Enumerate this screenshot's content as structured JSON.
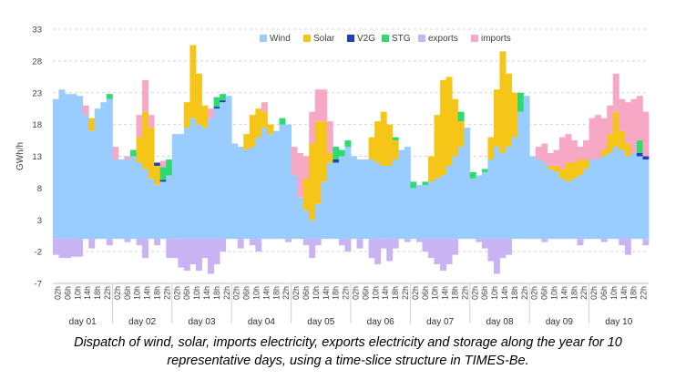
{
  "chart_data": {
    "type": "area",
    "ylabel": "GWh/h",
    "ylim": [
      -7,
      33
    ],
    "yticks": [
      33,
      28,
      23,
      18,
      13,
      8,
      3,
      -2,
      -7
    ],
    "grid": "dashed horizontal",
    "legend_placement": "top-right",
    "series": [
      {
        "name": "Wind",
        "color": "#99CCFF"
      },
      {
        "name": "Solar",
        "color": "#F5C518"
      },
      {
        "name": "V2G",
        "color": "#1F3FBF"
      },
      {
        "name": "STG",
        "color": "#2EDB6E"
      },
      {
        "name": "exports",
        "color": "#C9B3F2"
      },
      {
        "name": "imports",
        "color": "#F7A8C4"
      }
    ],
    "hour_labels": [
      "02h",
      "06h",
      "10h",
      "14h",
      "18h",
      "22h"
    ],
    "days": [
      {
        "label": "day 01",
        "wind": [
          22.0,
          23.5,
          22.8,
          22.8,
          22.5,
          19.5,
          17.0,
          20.5,
          21.5,
          22.0
        ],
        "solar": [
          0,
          0,
          0,
          0,
          0,
          0,
          2.0,
          0,
          0,
          0
        ],
        "v2g": [
          0,
          0,
          0,
          0,
          0,
          0,
          0,
          0,
          0,
          0
        ],
        "stg": [
          0,
          0,
          0,
          0,
          0,
          0,
          0,
          0,
          0,
          0.8
        ],
        "imports": [
          0,
          0,
          0,
          0,
          0,
          1.5,
          0,
          0,
          0,
          0
        ],
        "exports": [
          -2.5,
          -3.0,
          -3.0,
          -2.8,
          -2.8,
          0,
          -1.5,
          0,
          0,
          -1.0
        ]
      },
      {
        "label": "day 02",
        "wind": [
          12.5,
          12.5,
          12.5,
          13.0,
          12.0,
          11.0,
          9.5,
          8.5,
          9.0,
          10.0
        ],
        "solar": [
          0,
          0,
          0,
          0,
          4.0,
          9.0,
          8.0,
          3.0,
          0,
          0
        ],
        "v2g": [
          0,
          0,
          0,
          0,
          0,
          0,
          0,
          0.5,
          0.3,
          0
        ],
        "stg": [
          0,
          0,
          0,
          1.0,
          0,
          0,
          0,
          0,
          2.0,
          2.5
        ],
        "imports": [
          2.0,
          0,
          0.5,
          0,
          3.5,
          5.0,
          2.0,
          0,
          1.0,
          0
        ],
        "exports": [
          0,
          0,
          -0.5,
          0,
          -1.0,
          -3.0,
          0,
          -1.0,
          0,
          -3.0
        ]
      },
      {
        "label": "day 03",
        "wind": [
          16.5,
          16.5,
          17.5,
          19.0,
          18.0,
          17.5,
          19.0,
          20.5,
          21.5,
          22.5
        ],
        "solar": [
          0,
          0,
          4.0,
          11.5,
          8.0,
          3.5,
          0,
          0,
          0,
          0
        ],
        "v2g": [
          0,
          0,
          0,
          0,
          0,
          0,
          0,
          0.3,
          0.3,
          0
        ],
        "stg": [
          0,
          0,
          0,
          0,
          0,
          0,
          0,
          1.5,
          1.0,
          0
        ],
        "imports": [
          0,
          0,
          0,
          0,
          0,
          0,
          1.5,
          0,
          0,
          0
        ],
        "exports": [
          -3.0,
          -4.5,
          -5.0,
          -4.0,
          -5.0,
          -3.0,
          -5.5,
          -4.0,
          -2.0,
          0
        ]
      },
      {
        "label": "day 04",
        "wind": [
          15.0,
          14.5,
          14.0,
          14.5,
          16.0,
          17.5,
          16.5,
          17.0,
          18.0,
          18.0
        ],
        "solar": [
          0,
          0,
          2.5,
          5.0,
          4.5,
          2.5,
          1.5,
          0,
          0,
          0
        ],
        "v2g": [
          0,
          0,
          0,
          0,
          0,
          0,
          0,
          0,
          0,
          0
        ],
        "stg": [
          0,
          0,
          0,
          0,
          0,
          0,
          0,
          0,
          1.0,
          0
        ],
        "imports": [
          0,
          0,
          0,
          0,
          0,
          1.5,
          0,
          0,
          0,
          0
        ],
        "exports": [
          0,
          -1.5,
          0,
          -1.0,
          -2.0,
          0,
          0,
          0,
          0,
          -0.5
        ]
      },
      {
        "label": "day 05",
        "wind": [
          10.0,
          6.5,
          4.5,
          3.0,
          5.5,
          9.0,
          12.0,
          12.0,
          13.0,
          14.5
        ],
        "solar": [
          0,
          0,
          5.0,
          12.0,
          13.0,
          9.5,
          1.5,
          0,
          0,
          0
        ],
        "v2g": [
          0,
          0,
          0,
          0,
          0,
          0,
          0,
          0.5,
          0,
          0
        ],
        "stg": [
          0,
          0,
          0,
          0,
          0,
          0,
          0,
          2.0,
          1.0,
          1.0
        ],
        "imports": [
          4.5,
          7.0,
          3.5,
          5.0,
          5.0,
          5.0,
          5.0,
          0,
          0,
          0
        ],
        "exports": [
          0,
          0,
          -1.0,
          -3.0,
          -1.0,
          0,
          0,
          0,
          -1.0,
          -2.0
        ]
      },
      {
        "label": "day 06",
        "wind": [
          13.0,
          12.5,
          12.5,
          12.5,
          12.0,
          11.5,
          11.5,
          12.5,
          14.0,
          14.5
        ],
        "solar": [
          0,
          0,
          0,
          3.5,
          6.5,
          8.5,
          6.5,
          3.0,
          0,
          0
        ],
        "v2g": [
          0,
          0,
          0,
          0,
          0,
          0,
          0,
          0,
          0,
          0
        ],
        "stg": [
          0,
          0,
          0,
          0,
          0,
          0,
          0,
          0.5,
          0,
          0
        ],
        "imports": [
          0,
          0,
          0,
          0,
          0,
          0,
          0,
          0,
          0,
          0
        ],
        "exports": [
          0,
          -1.5,
          0,
          -3.0,
          -4.0,
          -1.5,
          -3.5,
          -1.5,
          0,
          -0.5
        ]
      },
      {
        "label": "day 07",
        "wind": [
          8.0,
          8.5,
          8.5,
          9.0,
          9.5,
          10.0,
          11.5,
          13.0,
          14.5,
          17.5
        ],
        "solar": [
          0,
          0,
          0,
          4.0,
          10.0,
          15.0,
          14.0,
          9.0,
          4.0,
          0
        ],
        "v2g": [
          0,
          0,
          0,
          0,
          0,
          0,
          0,
          0,
          0,
          0
        ],
        "stg": [
          1.0,
          0,
          0.5,
          0,
          0,
          0,
          0,
          0,
          1.5,
          0
        ],
        "imports": [
          0,
          0,
          0,
          0,
          0,
          0,
          0,
          0,
          0,
          0
        ],
        "exports": [
          0,
          -0.5,
          -2.0,
          -3.0,
          -4.0,
          -5.0,
          -4.0,
          -2.5,
          0,
          0
        ]
      },
      {
        "label": "day 08",
        "wind": [
          9.5,
          10.0,
          10.5,
          12.5,
          14.5,
          13.5,
          14.5,
          16.0,
          20.0,
          22.5
        ],
        "solar": [
          0,
          0,
          0,
          3.5,
          9.0,
          16.0,
          11.5,
          7.0,
          0,
          0
        ],
        "v2g": [
          0,
          0,
          0,
          0,
          0,
          0,
          0,
          0,
          0,
          0
        ],
        "stg": [
          1.0,
          0,
          0.5,
          0,
          0,
          0,
          0,
          0,
          3.0,
          0
        ],
        "imports": [
          0,
          0,
          0,
          0,
          0,
          0,
          0,
          0,
          0,
          0
        ],
        "exports": [
          0,
          -0.5,
          -1.5,
          -3.5,
          -5.5,
          -3.0,
          -2.5,
          0,
          0,
          0
        ]
      },
      {
        "label": "day 09",
        "wind": [
          13.0,
          12.5,
          12.0,
          11.0,
          10.5,
          9.5,
          9.0,
          9.5,
          10.0,
          11.0
        ],
        "solar": [
          0,
          0,
          0,
          0.5,
          1.0,
          1.5,
          3.0,
          2.5,
          2.5,
          1.5
        ],
        "v2g": [
          0,
          0,
          0,
          0,
          0,
          0,
          0,
          0,
          0,
          0
        ],
        "stg": [
          0,
          0,
          0,
          0,
          0,
          0,
          0,
          0,
          0,
          0
        ],
        "imports": [
          0,
          2.0,
          3.0,
          2.0,
          2.5,
          5.0,
          4.5,
          3.5,
          2.0,
          3.0
        ],
        "exports": [
          0,
          0,
          -0.5,
          0,
          0,
          0,
          0,
          0,
          -1.0,
          0
        ]
      },
      {
        "label": "day 10",
        "wind": [
          12.5,
          12.5,
          13.0,
          13.5,
          14.5,
          14.0,
          13.0,
          13.5,
          13.0,
          12.5
        ],
        "solar": [
          0,
          0,
          1.0,
          3.0,
          5.5,
          3.0,
          2.0,
          0,
          0,
          0
        ],
        "v2g": [
          0,
          0,
          0,
          0,
          0,
          0,
          0,
          0,
          0.5,
          0.5
        ],
        "stg": [
          0,
          0,
          0,
          0,
          0,
          0,
          0,
          0,
          2.0,
          0
        ],
        "imports": [
          6.5,
          7.0,
          5.0,
          4.5,
          6.0,
          5.0,
          6.5,
          8.5,
          7.0,
          7.0
        ],
        "exports": [
          0,
          0,
          -0.5,
          0,
          0,
          -1.0,
          -2.5,
          0,
          0,
          -1.0
        ]
      }
    ]
  },
  "caption": {
    "line1": "Dispatch of wind, solar, imports electricity, exports electricity and storage along the year for 10",
    "line2": "representative days,  using a time-slice structure in TIMES-Be."
  }
}
